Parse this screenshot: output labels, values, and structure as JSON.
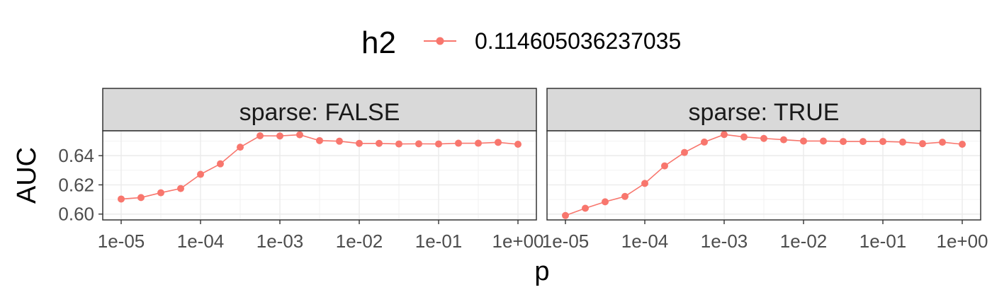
{
  "legend": {
    "title": "h2",
    "entries": [
      {
        "label": "0.114605036237035",
        "color": "#F8766D"
      }
    ]
  },
  "chart_data": {
    "type": "line",
    "xlabel": "p",
    "ylabel": "AUC",
    "x_scale": "log10",
    "xlim": [
      1e-05,
      1
    ],
    "ylim": [
      0.596,
      0.657
    ],
    "x_ticks": [
      1e-05,
      0.0001,
      0.001,
      0.01,
      0.1,
      1
    ],
    "x_tick_labels": [
      "1e-05",
      "1e-04",
      "1e-03",
      "1e-02",
      "1e-01",
      "1e+00"
    ],
    "y_ticks": [
      0.6,
      0.62,
      0.64
    ],
    "y_tick_labels": [
      "0.60",
      "0.62",
      "0.64"
    ],
    "grid": true,
    "legend_position": "top",
    "x": [
      1e-05,
      1.778e-05,
      3.162e-05,
      5.623e-05,
      0.0001,
      0.0001778,
      0.0003162,
      0.0005623,
      0.001,
      0.001778,
      0.003162,
      0.005623,
      0.01,
      0.01778,
      0.03162,
      0.05623,
      0.1,
      0.1778,
      0.3162,
      0.5623,
      1
    ],
    "panels": [
      {
        "strip": "sparse: FALSE",
        "series": [
          {
            "name": "0.114605036237035",
            "color": "#F8766D",
            "values": [
              0.6103,
              0.6113,
              0.6146,
              0.6175,
              0.6272,
              0.6344,
              0.6458,
              0.6536,
              0.6535,
              0.6543,
              0.6503,
              0.6499,
              0.6484,
              0.6484,
              0.648,
              0.6481,
              0.648,
              0.6485,
              0.6485,
              0.6491,
              0.6478
            ]
          }
        ]
      },
      {
        "strip": "sparse: TRUE",
        "series": [
          {
            "name": "0.114605036237035",
            "color": "#F8766D",
            "values": [
              0.599,
              0.604,
              0.6084,
              0.6121,
              0.621,
              0.633,
              0.6422,
              0.6493,
              0.6545,
              0.6528,
              0.6518,
              0.6509,
              0.65,
              0.65,
              0.6497,
              0.6497,
              0.6497,
              0.6493,
              0.6482,
              0.6492,
              0.6478
            ]
          }
        ]
      }
    ]
  }
}
